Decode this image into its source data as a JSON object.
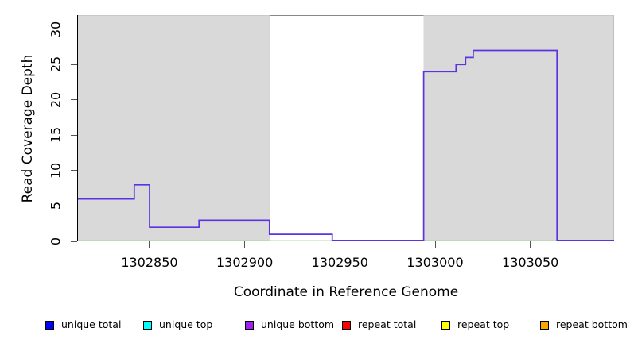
{
  "chart_data": {
    "type": "line",
    "subtype": "step-coverage-plot",
    "title": "",
    "xlabel": "Coordinate in Reference Genome",
    "ylabel": "Read Coverage Depth",
    "xlim": [
      1302812,
      1303094
    ],
    "ylim": [
      0,
      32
    ],
    "grid": false,
    "x_ticks": [
      1302850,
      1302900,
      1302950,
      1303000,
      1303050
    ],
    "x_tick_labels": [
      "1302850",
      "1302900",
      "1302950",
      "1303000",
      "1303050"
    ],
    "y_ticks": [
      0,
      5,
      10,
      15,
      20,
      25,
      30
    ],
    "y_tick_labels": [
      "0",
      "5",
      "10",
      "15",
      "20",
      "25",
      "30"
    ],
    "shade_color": "#d9d9d9",
    "shaded_regions": [
      {
        "from": 1302812,
        "to": 1302913
      },
      {
        "from": 1302994,
        "to": 1303094
      }
    ],
    "series": [
      {
        "name": "coverage-depth-step-line",
        "color": "#5b33e0",
        "segments_from_to_depth": [
          [
            1302812,
            1302842,
            6
          ],
          [
            1302842,
            1302850,
            8
          ],
          [
            1302850,
            1302876,
            2
          ],
          [
            1302876,
            1302913,
            3
          ],
          [
            1302913,
            1302946,
            1
          ],
          [
            1302946,
            1302994,
            0
          ],
          [
            1302994,
            1303011,
            24
          ],
          [
            1303011,
            1303016,
            25
          ],
          [
            1303016,
            1303020,
            26
          ],
          [
            1303020,
            1303064,
            27
          ],
          [
            1303064,
            1303094,
            0
          ]
        ]
      },
      {
        "name": "zero-coverage-baseline",
        "color": "#8fd38f",
        "segments_from_to_depth": [
          [
            1302812,
            1303094,
            0
          ]
        ]
      }
    ],
    "legend": {
      "position": "bottom",
      "items": [
        {
          "label": "unique total",
          "color": "#0000ff"
        },
        {
          "label": "unique top",
          "color": "#00ffff"
        },
        {
          "label": "unique bottom",
          "color": "#a020f0"
        },
        {
          "label": "repeat total",
          "color": "#ff0000"
        },
        {
          "label": "repeat top",
          "color": "#ffff00"
        },
        {
          "label": "repeat bottom",
          "color": "#ffa500"
        }
      ]
    }
  }
}
